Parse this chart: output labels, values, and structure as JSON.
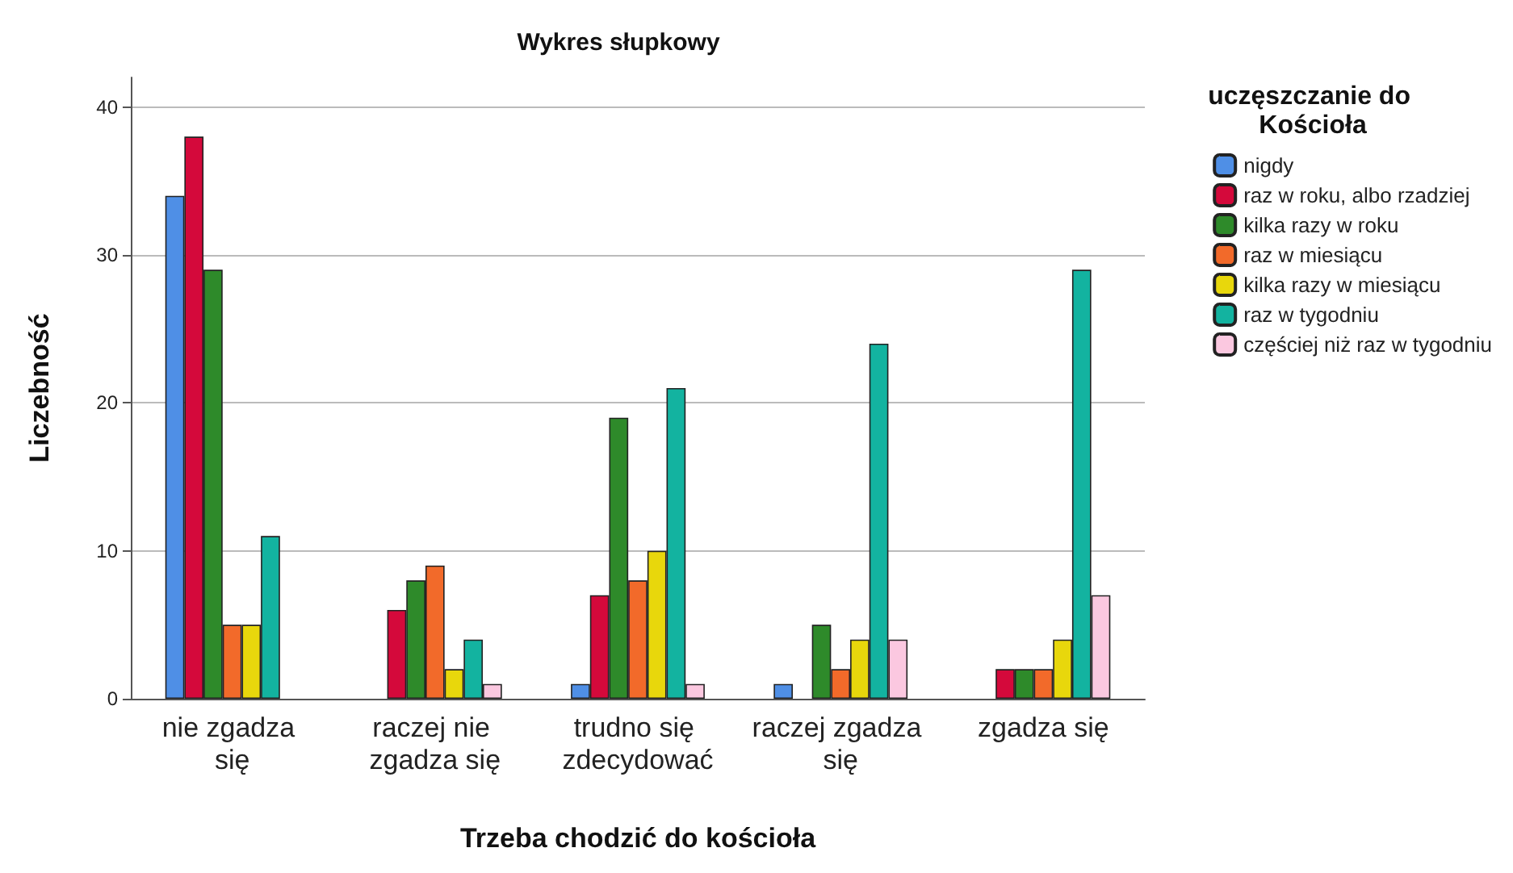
{
  "chart_data": {
    "type": "bar",
    "title": "Wykres słupkowy",
    "xlabel": "Trzeba chodzić do kościoła",
    "ylabel": "Liczebność",
    "legend_title": "uczęszczanie do Kościoła",
    "categories": [
      "nie zgadza się",
      "raczej nie zgadza się",
      "trudno się zdecydować",
      "raczej zgadza się",
      "zgadza się"
    ],
    "series": [
      {
        "name": "nigdy",
        "color": "#4f8fe6",
        "values": [
          34,
          null,
          1,
          1,
          null
        ]
      },
      {
        "name": "raz w roku, albo rzadziej",
        "color": "#d4093b",
        "values": [
          38,
          6,
          7,
          null,
          2
        ]
      },
      {
        "name": "kilka razy w roku",
        "color": "#2e8a2a",
        "values": [
          29,
          8,
          19,
          5,
          2
        ]
      },
      {
        "name": "raz w miesiącu",
        "color": "#f26a2a",
        "values": [
          5,
          9,
          8,
          2,
          2
        ]
      },
      {
        "name": "kilka razy w miesiącu",
        "color": "#e8d70c",
        "values": [
          5,
          2,
          10,
          4,
          4
        ]
      },
      {
        "name": "raz w tygodniu",
        "color": "#13b3a0",
        "values": [
          11,
          4,
          21,
          24,
          29
        ]
      },
      {
        "name": "częściej niż raz w tygodniu",
        "color": "#fbc8e0",
        "values": [
          null,
          1,
          1,
          4,
          7
        ]
      }
    ],
    "ylim": [
      0,
      42
    ],
    "yticks": [
      0,
      10,
      20,
      30,
      40
    ],
    "grid": "y",
    "legend": "right"
  }
}
